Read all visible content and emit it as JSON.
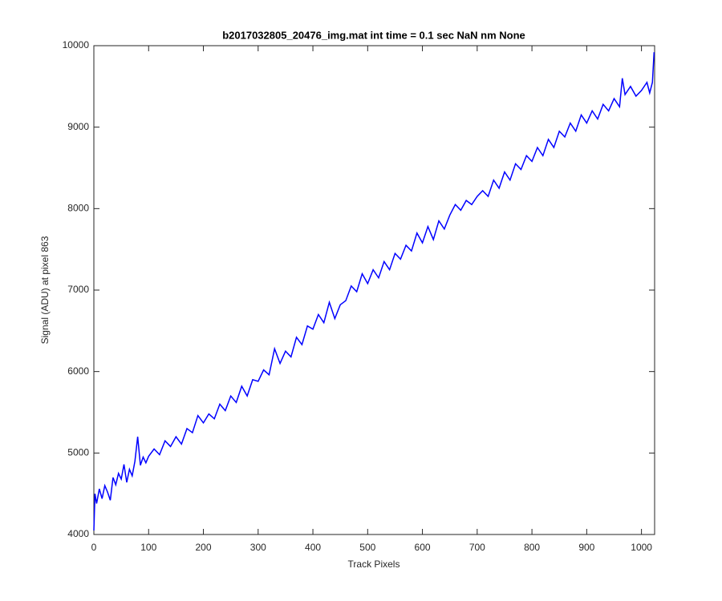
{
  "chart_data": {
    "type": "line",
    "title": "b2017032805_20476_img.mat int time = 0.1 sec  NaN nm None",
    "x_label": "Track Pixels",
    "y_label": "Signal (ADU) at pixel 863",
    "xlim": [
      0,
      1024
    ],
    "ylim": [
      4000,
      10000
    ],
    "xticks": [
      0,
      100,
      200,
      300,
      400,
      500,
      600,
      700,
      800,
      900,
      1000
    ],
    "yticks": [
      4000,
      5000,
      6000,
      7000,
      8000,
      9000,
      10000
    ],
    "grid": false,
    "x": [
      0,
      2,
      5,
      10,
      15,
      20,
      25,
      30,
      35,
      40,
      45,
      50,
      55,
      60,
      65,
      70,
      75,
      80,
      85,
      90,
      95,
      100,
      110,
      120,
      130,
      140,
      150,
      160,
      170,
      180,
      190,
      200,
      210,
      220,
      230,
      240,
      250,
      260,
      270,
      280,
      290,
      300,
      310,
      320,
      330,
      340,
      350,
      360,
      370,
      380,
      390,
      400,
      410,
      420,
      430,
      440,
      450,
      460,
      470,
      480,
      490,
      500,
      510,
      520,
      530,
      540,
      550,
      560,
      570,
      580,
      590,
      600,
      610,
      620,
      630,
      640,
      650,
      660,
      670,
      680,
      690,
      700,
      710,
      720,
      730,
      740,
      750,
      760,
      770,
      780,
      790,
      800,
      810,
      820,
      830,
      840,
      850,
      860,
      870,
      880,
      890,
      900,
      910,
      920,
      930,
      940,
      950,
      960,
      965,
      970,
      980,
      990,
      1000,
      1010,
      1015,
      1020,
      1023
    ],
    "series": [
      {
        "name": "Signal",
        "color": "#0000ff",
        "values": [
          4050,
          4500,
          4380,
          4560,
          4440,
          4600,
          4520,
          4420,
          4700,
          4610,
          4750,
          4680,
          4860,
          4640,
          4800,
          4720,
          4900,
          5200,
          4850,
          4950,
          4880,
          4960,
          5050,
          4980,
          5150,
          5080,
          5200,
          5110,
          5300,
          5250,
          5460,
          5370,
          5480,
          5420,
          5600,
          5520,
          5700,
          5620,
          5820,
          5700,
          5900,
          5880,
          6020,
          5960,
          6280,
          6100,
          6250,
          6180,
          6420,
          6330,
          6560,
          6520,
          6700,
          6600,
          6850,
          6650,
          6820,
          6870,
          7050,
          6980,
          7200,
          7080,
          7250,
          7150,
          7350,
          7250,
          7450,
          7380,
          7550,
          7480,
          7700,
          7580,
          7780,
          7620,
          7850,
          7750,
          7920,
          8050,
          7980,
          8100,
          8050,
          8150,
          8220,
          8150,
          8350,
          8250,
          8450,
          8350,
          8550,
          8480,
          8650,
          8580,
          8750,
          8650,
          8850,
          8750,
          8950,
          8880,
          9050,
          8950,
          9150,
          9050,
          9200,
          9100,
          9280,
          9200,
          9350,
          9250,
          9600,
          9400,
          9500,
          9380,
          9450,
          9550,
          9420,
          9550,
          9920
        ]
      }
    ]
  }
}
